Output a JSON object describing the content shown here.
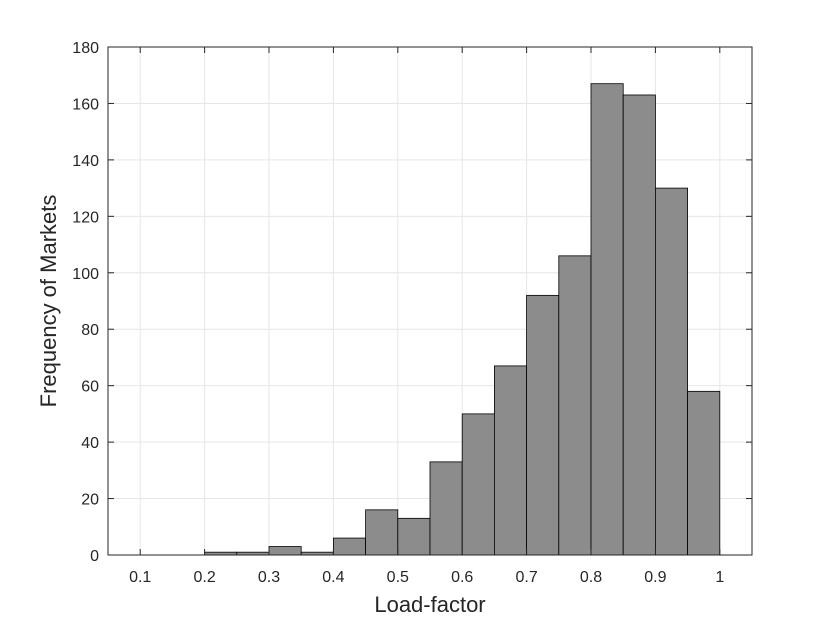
{
  "chart_data": {
    "type": "bar",
    "title": "",
    "xlabel": "Load-factor",
    "ylabel": "Frequency of Markets",
    "xlim": [
      0.05,
      1.05
    ],
    "ylim": [
      0,
      180
    ],
    "xticks": [
      "0.1",
      "0.2",
      "0.3",
      "0.4",
      "0.5",
      "0.6",
      "0.7",
      "0.8",
      "0.9",
      "1"
    ],
    "xtick_values": [
      0.1,
      0.2,
      0.3,
      0.4,
      0.5,
      0.6,
      0.7,
      0.8,
      0.9,
      1.0
    ],
    "yticks": [
      "0",
      "20",
      "40",
      "60",
      "80",
      "100",
      "120",
      "140",
      "160",
      "180"
    ],
    "ytick_values": [
      0,
      20,
      40,
      60,
      80,
      100,
      120,
      140,
      160,
      180
    ],
    "grid": true,
    "bin_edges": [
      0.1,
      0.15,
      0.2,
      0.25,
      0.3,
      0.35,
      0.4,
      0.45,
      0.5,
      0.55,
      0.6,
      0.65,
      0.7,
      0.75,
      0.8,
      0.85,
      0.9,
      0.95,
      1.0
    ],
    "values": [
      0,
      0,
      1,
      1,
      3,
      1,
      6,
      16,
      13,
      33,
      50,
      67,
      92,
      106,
      167,
      163,
      130,
      58
    ],
    "bar_color": "#8c8c8c",
    "edge_color": "#000000"
  }
}
